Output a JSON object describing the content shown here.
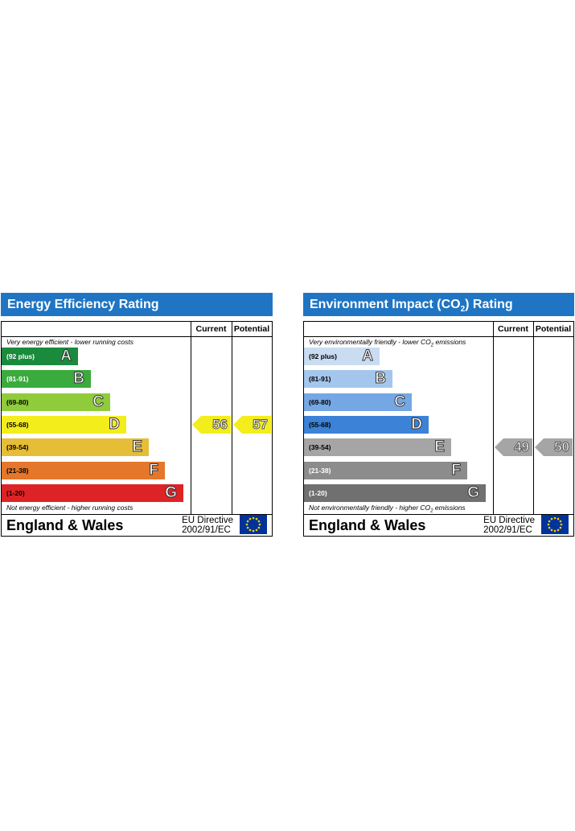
{
  "chart_data": [
    {
      "type": "epc-rating",
      "title": "Energy Efficiency Rating",
      "title_sub": "",
      "title_tail": "",
      "columns": [
        "Current",
        "Potential"
      ],
      "note_top": "Very energy efficient - lower running costs",
      "note_bottom": "Not energy efficient - higher running costs",
      "bands": [
        {
          "range": "(92 plus)",
          "letter": "A",
          "color": "#1a8a3c",
          "text_color": "#ffffff"
        },
        {
          "range": "(81-91)",
          "letter": "B",
          "color": "#3aab3c",
          "text_color": "#ffffff"
        },
        {
          "range": "(69-80)",
          "letter": "C",
          "color": "#8fcb3a",
          "text_color": "#000000"
        },
        {
          "range": "(55-68)",
          "letter": "D",
          "color": "#f4ed1c",
          "text_color": "#000000"
        },
        {
          "range": "(39-54)",
          "letter": "E",
          "color": "#e6bd36",
          "text_color": "#000000"
        },
        {
          "range": "(21-38)",
          "letter": "F",
          "color": "#e4772b",
          "text_color": "#000000"
        },
        {
          "range": "(1-20)",
          "letter": "G",
          "color": "#de2326",
          "text_color": "#000000"
        }
      ],
      "current": 56,
      "potential": 57,
      "current_band": "D",
      "potential_band": "D",
      "arrow_color": "#f4ed1c",
      "footer_region": "England & Wales",
      "footer_directive_line1": "EU Directive",
      "footer_directive_line2": "2002/91/EC"
    },
    {
      "type": "epc-rating",
      "title": "Environment Impact (CO",
      "title_sub": "2",
      "title_tail": ") Rating",
      "columns": [
        "Current",
        "Potential"
      ],
      "note_top": "Very environmentally friendly - lower CO",
      "note_top_sub": "2",
      "note_top_tail": " emissions",
      "note_bottom": "Not environmentally friendly - higher CO",
      "note_bottom_sub": "2",
      "note_bottom_tail": " emissions",
      "bands": [
        {
          "range": "(92 plus)",
          "letter": "A",
          "color": "#c9dcf2",
          "text_color": "#000000"
        },
        {
          "range": "(81-91)",
          "letter": "B",
          "color": "#a4c6ec",
          "text_color": "#000000"
        },
        {
          "range": "(69-80)",
          "letter": "C",
          "color": "#74a7e3",
          "text_color": "#000000"
        },
        {
          "range": "(55-68)",
          "letter": "D",
          "color": "#3c82d6",
          "text_color": "#000000"
        },
        {
          "range": "(39-54)",
          "letter": "E",
          "color": "#a5a5a5",
          "text_color": "#000000"
        },
        {
          "range": "(21-38)",
          "letter": "F",
          "color": "#8c8c8c",
          "text_color": "#ffffff"
        },
        {
          "range": "(1-20)",
          "letter": "G",
          "color": "#707070",
          "text_color": "#ffffff"
        }
      ],
      "current": 49,
      "potential": 50,
      "current_band": "E",
      "potential_band": "E",
      "arrow_color": "#a5a5a5",
      "footer_region": "England & Wales",
      "footer_directive_line1": "EU Directive",
      "footer_directive_line2": "2002/91/EC"
    }
  ]
}
